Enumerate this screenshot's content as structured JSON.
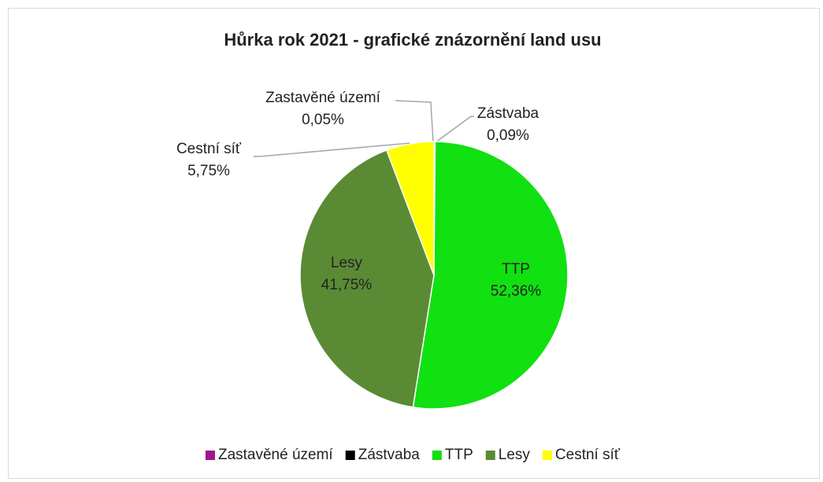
{
  "chart_data": {
    "type": "pie",
    "title": "Hůrka rok 2021 - grafické znázornění land usu",
    "categories": [
      "Zastavěné území",
      "Zástvaba",
      "TTP",
      "Lesy",
      "Cestní síť"
    ],
    "values": [
      0.05,
      0.09,
      52.36,
      41.75,
      5.75
    ],
    "value_labels": [
      "0,05%",
      "0,09%",
      "52,36%",
      "41,75%",
      "5,75%"
    ],
    "colors": [
      "#a0158f",
      "#000000",
      "#11e011",
      "#5b8a35",
      "#ffff00"
    ],
    "legend": "bottom"
  }
}
